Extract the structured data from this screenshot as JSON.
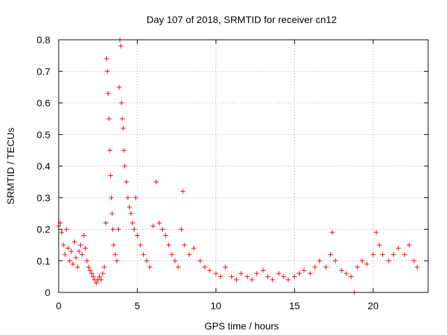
{
  "chart_data": {
    "type": "scatter",
    "title": "Day 107 of 2018, SRMTID for receiver cn12",
    "xlabel": "GPS time / hours",
    "ylabel": "SRMTID / TECUs",
    "xlim": [
      0,
      23.5
    ],
    "ylim": [
      0,
      0.8
    ],
    "xticks": [
      0,
      5,
      10,
      15,
      20
    ],
    "xtick_labels": [
      "0",
      "5",
      "10",
      "15",
      "20"
    ],
    "yticks": [
      0,
      0.1,
      0.2,
      0.3,
      0.4,
      0.5,
      0.6,
      0.7,
      0.8
    ],
    "ytick_labels": [
      "0",
      "0.1",
      "0.2",
      "0.3",
      "0.4",
      "0.5",
      "0.6",
      "0.7",
      "0.8"
    ],
    "grid": true,
    "marker_color": "#ff0000",
    "series": [
      {
        "name": "SRMTID",
        "marker": "plus",
        "points": [
          [
            0.0,
            0.21
          ],
          [
            0.1,
            0.22
          ],
          [
            0.2,
            0.19
          ],
          [
            0.3,
            0.15
          ],
          [
            0.4,
            0.12
          ],
          [
            0.5,
            0.2
          ],
          [
            0.6,
            0.14
          ],
          [
            0.7,
            0.1
          ],
          [
            0.8,
            0.13
          ],
          [
            0.9,
            0.09
          ],
          [
            1.0,
            0.16
          ],
          [
            1.1,
            0.11
          ],
          [
            1.2,
            0.08
          ],
          [
            1.3,
            0.13
          ],
          [
            1.4,
            0.15
          ],
          [
            1.5,
            0.12
          ],
          [
            1.6,
            0.18
          ],
          [
            1.7,
            0.14
          ],
          [
            1.8,
            0.1
          ],
          [
            1.9,
            0.08
          ],
          [
            2.0,
            0.07
          ],
          [
            2.1,
            0.06
          ],
          [
            2.2,
            0.05
          ],
          [
            2.3,
            0.04
          ],
          [
            2.4,
            0.03
          ],
          [
            2.5,
            0.04
          ],
          [
            2.6,
            0.05
          ],
          [
            2.7,
            0.04
          ],
          [
            2.8,
            0.06
          ],
          [
            2.9,
            0.08
          ],
          [
            3.0,
            0.22
          ],
          [
            3.05,
            0.74
          ],
          [
            3.1,
            0.7
          ],
          [
            3.15,
            0.63
          ],
          [
            3.2,
            0.55
          ],
          [
            3.25,
            0.45
          ],
          [
            3.3,
            0.37
          ],
          [
            3.35,
            0.3
          ],
          [
            3.4,
            0.25
          ],
          [
            3.45,
            0.2
          ],
          [
            3.5,
            0.15
          ],
          [
            3.6,
            0.12
          ],
          [
            3.7,
            0.1
          ],
          [
            3.8,
            0.2
          ],
          [
            3.85,
            0.65
          ],
          [
            3.9,
            0.8
          ],
          [
            3.95,
            0.78
          ],
          [
            4.0,
            0.6
          ],
          [
            4.05,
            0.55
          ],
          [
            4.1,
            0.52
          ],
          [
            4.15,
            0.45
          ],
          [
            4.2,
            0.4
          ],
          [
            4.3,
            0.35
          ],
          [
            4.4,
            0.3
          ],
          [
            4.5,
            0.27
          ],
          [
            4.6,
            0.25
          ],
          [
            4.7,
            0.22
          ],
          [
            4.8,
            0.2
          ],
          [
            4.9,
            0.3
          ],
          [
            5.0,
            0.18
          ],
          [
            5.2,
            0.15
          ],
          [
            5.4,
            0.12
          ],
          [
            5.6,
            0.1
          ],
          [
            5.8,
            0.08
          ],
          [
            6.0,
            0.21
          ],
          [
            6.2,
            0.35
          ],
          [
            6.4,
            0.22
          ],
          [
            6.6,
            0.2
          ],
          [
            6.8,
            0.18
          ],
          [
            7.0,
            0.15
          ],
          [
            7.2,
            0.12
          ],
          [
            7.4,
            0.1
          ],
          [
            7.6,
            0.08
          ],
          [
            7.8,
            0.2
          ],
          [
            7.9,
            0.32
          ],
          [
            8.0,
            0.15
          ],
          [
            8.3,
            0.12
          ],
          [
            8.6,
            0.14
          ],
          [
            9.0,
            0.1
          ],
          [
            9.3,
            0.08
          ],
          [
            9.6,
            0.07
          ],
          [
            10.0,
            0.06
          ],
          [
            10.3,
            0.05
          ],
          [
            10.6,
            0.08
          ],
          [
            11.0,
            0.05
          ],
          [
            11.3,
            0.04
          ],
          [
            11.6,
            0.06
          ],
          [
            12.0,
            0.05
          ],
          [
            12.3,
            0.04
          ],
          [
            12.6,
            0.06
          ],
          [
            13.0,
            0.07
          ],
          [
            13.3,
            0.05
          ],
          [
            13.6,
            0.04
          ],
          [
            14.0,
            0.06
          ],
          [
            14.3,
            0.05
          ],
          [
            14.6,
            0.04
          ],
          [
            15.0,
            0.05
          ],
          [
            15.3,
            0.06
          ],
          [
            15.6,
            0.07
          ],
          [
            16.0,
            0.06
          ],
          [
            16.3,
            0.08
          ],
          [
            16.6,
            0.1
          ],
          [
            17.0,
            0.08
          ],
          [
            17.3,
            0.12
          ],
          [
            17.4,
            0.19
          ],
          [
            17.6,
            0.1
          ],
          [
            18.0,
            0.07
          ],
          [
            18.3,
            0.06
          ],
          [
            18.6,
            0.05
          ],
          [
            18.8,
            0.0
          ],
          [
            19.0,
            0.08
          ],
          [
            19.3,
            0.1
          ],
          [
            19.6,
            0.09
          ],
          [
            20.0,
            0.12
          ],
          [
            20.2,
            0.19
          ],
          [
            20.4,
            0.15
          ],
          [
            20.6,
            0.12
          ],
          [
            21.0,
            0.1
          ],
          [
            21.3,
            0.12
          ],
          [
            21.6,
            0.14
          ],
          [
            22.0,
            0.12
          ],
          [
            22.3,
            0.15
          ],
          [
            22.6,
            0.1
          ],
          [
            22.8,
            0.08
          ]
        ]
      }
    ]
  }
}
